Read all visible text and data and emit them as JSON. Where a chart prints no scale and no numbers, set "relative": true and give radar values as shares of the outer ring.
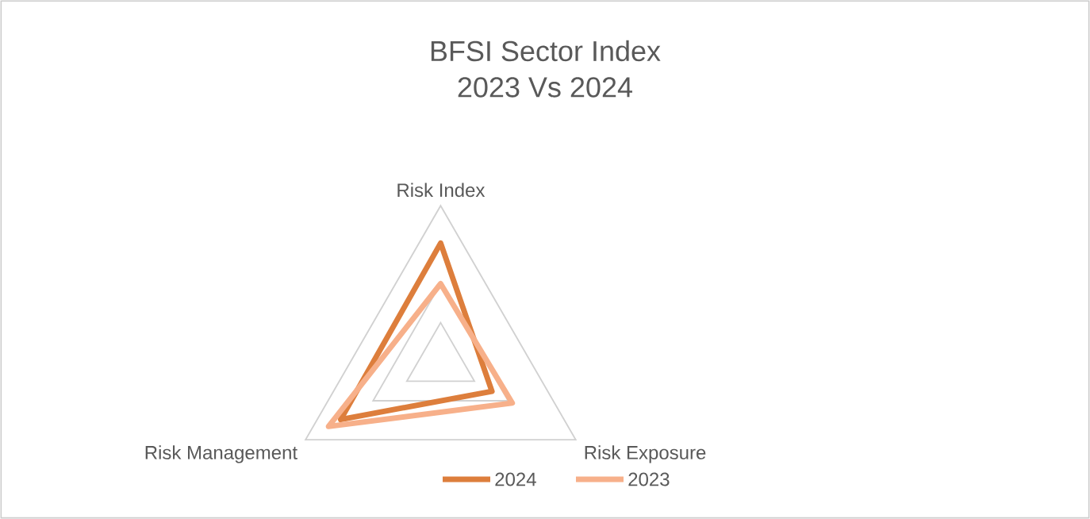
{
  "chart_data": {
    "type": "radar",
    "title": "BFSI Sector Index",
    "subtitle": "2023 Vs 2024",
    "categories": [
      "Risk Index",
      "Risk Exposure",
      "Risk Management"
    ],
    "relative": true,
    "legend": "bottom",
    "marker": "none",
    "line_style": "solid",
    "series": [
      {
        "name": "2024",
        "color": "#dd7e3c",
        "values": [
          0.76,
          0.38,
          0.74
        ]
      },
      {
        "name": "2023",
        "color": "#f7b08a",
        "values": [
          0.5,
          0.53,
          0.83
        ]
      }
    ]
  }
}
